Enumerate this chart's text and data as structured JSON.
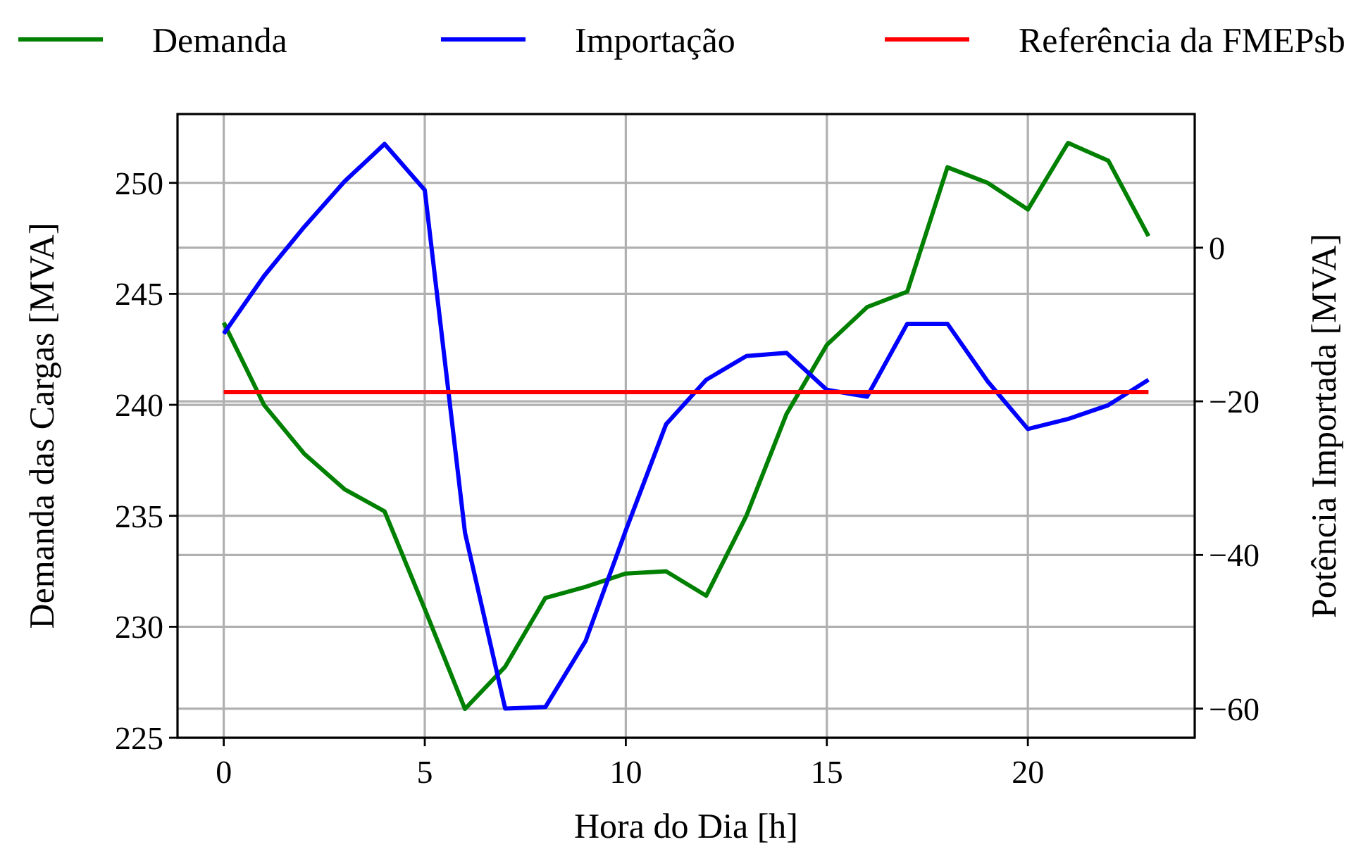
{
  "chart_data": {
    "type": "line",
    "xlabel": "Hora do Dia [h]",
    "ylabel": "Demanda das Cargas [MVA]",
    "y2label": "Potência Importada [MVA]",
    "x": [
      0,
      1,
      2,
      3,
      4,
      5,
      6,
      7,
      8,
      9,
      10,
      11,
      12,
      13,
      14,
      15,
      16,
      17,
      18,
      19,
      20,
      21,
      22,
      23
    ],
    "series": [
      {
        "name": "Demanda",
        "color": "#008000",
        "values": [
          243.7,
          240.0,
          237.8,
          236.2,
          235.2,
          230.8,
          226.3,
          228.2,
          231.3,
          231.8,
          232.4,
          232.5,
          231.4,
          235.0,
          239.6,
          242.7,
          244.4,
          245.1,
          250.7,
          250.0,
          248.8,
          251.8,
          251.0,
          247.6
        ]
      },
      {
        "name": "Importação",
        "color": "#0000ff",
        "axis": "y2",
        "values": [
          -11.2,
          -3.7,
          2.7,
          8.6,
          13.5,
          7.5,
          -37.1,
          -60.0,
          -59.8,
          -51.2,
          -36.8,
          -23.0,
          -17.2,
          -14.1,
          -13.7,
          -18.5,
          -19.4,
          -9.9,
          -9.9,
          -17.4,
          -23.6,
          -22.3,
          -20.5,
          -17.2
        ]
      },
      {
        "name": "Referência da FMEPsb",
        "color": "#ff0000",
        "axis": "y2",
        "x": [
          0,
          23
        ],
        "values": [
          -18.8,
          -18.8
        ]
      }
    ],
    "xlim": [
      -1.15,
      24.15
    ],
    "xticks": [
      0,
      5,
      10,
      15,
      20
    ],
    "ylim": [
      225,
      253.1
    ],
    "yticks": [
      225,
      230,
      235,
      240,
      245,
      250
    ],
    "y2lim": [
      -63.8,
      17.4
    ],
    "y2ticks": [
      -60,
      -40,
      -20,
      0
    ],
    "grid": true,
    "legend": "top",
    "line_style": "solid",
    "marker": "none"
  }
}
